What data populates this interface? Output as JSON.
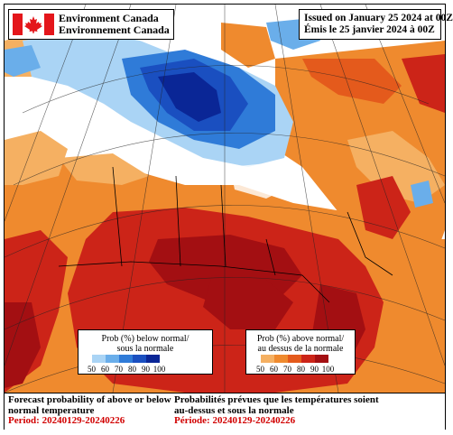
{
  "header": {
    "org_en": "Environment Canada",
    "org_fr": "Environnement Canada",
    "issued_en": "Issued on January 25 2024 at 00Z",
    "issued_fr": "Émis le 25 janvier 2024 à 00Z"
  },
  "logo": {
    "icon": "canada-flag-icon"
  },
  "legend_below": {
    "title_line1": "Prob (%) below normal/",
    "title_line2": "sous la normale",
    "ticks": [
      "50",
      "60",
      "70",
      "80",
      "90",
      "100"
    ],
    "colors": [
      "#aad4f5",
      "#6aaeea",
      "#2f7bd8",
      "#1a4fc0",
      "#0a2696"
    ]
  },
  "legend_above": {
    "title_line1": "Prob (%) above normal/",
    "title_line2": "au dessus de la normale",
    "ticks": [
      "50",
      "60",
      "70",
      "80",
      "90",
      "100"
    ],
    "colors": [
      "#f5b062",
      "#ef8a2e",
      "#e45a1c",
      "#cc2418",
      "#a30f12"
    ]
  },
  "footer": {
    "title_en_line1": "Forecast probability of above or below",
    "title_en_line2": "normal temperature",
    "period_en": "Period: 20240129-20240226",
    "title_fr_line1": "Probabilités prévues que les températures soient",
    "title_fr_line2": "au-dessus et sous la normale",
    "period_fr": "Période: 20240129-20240226"
  }
}
